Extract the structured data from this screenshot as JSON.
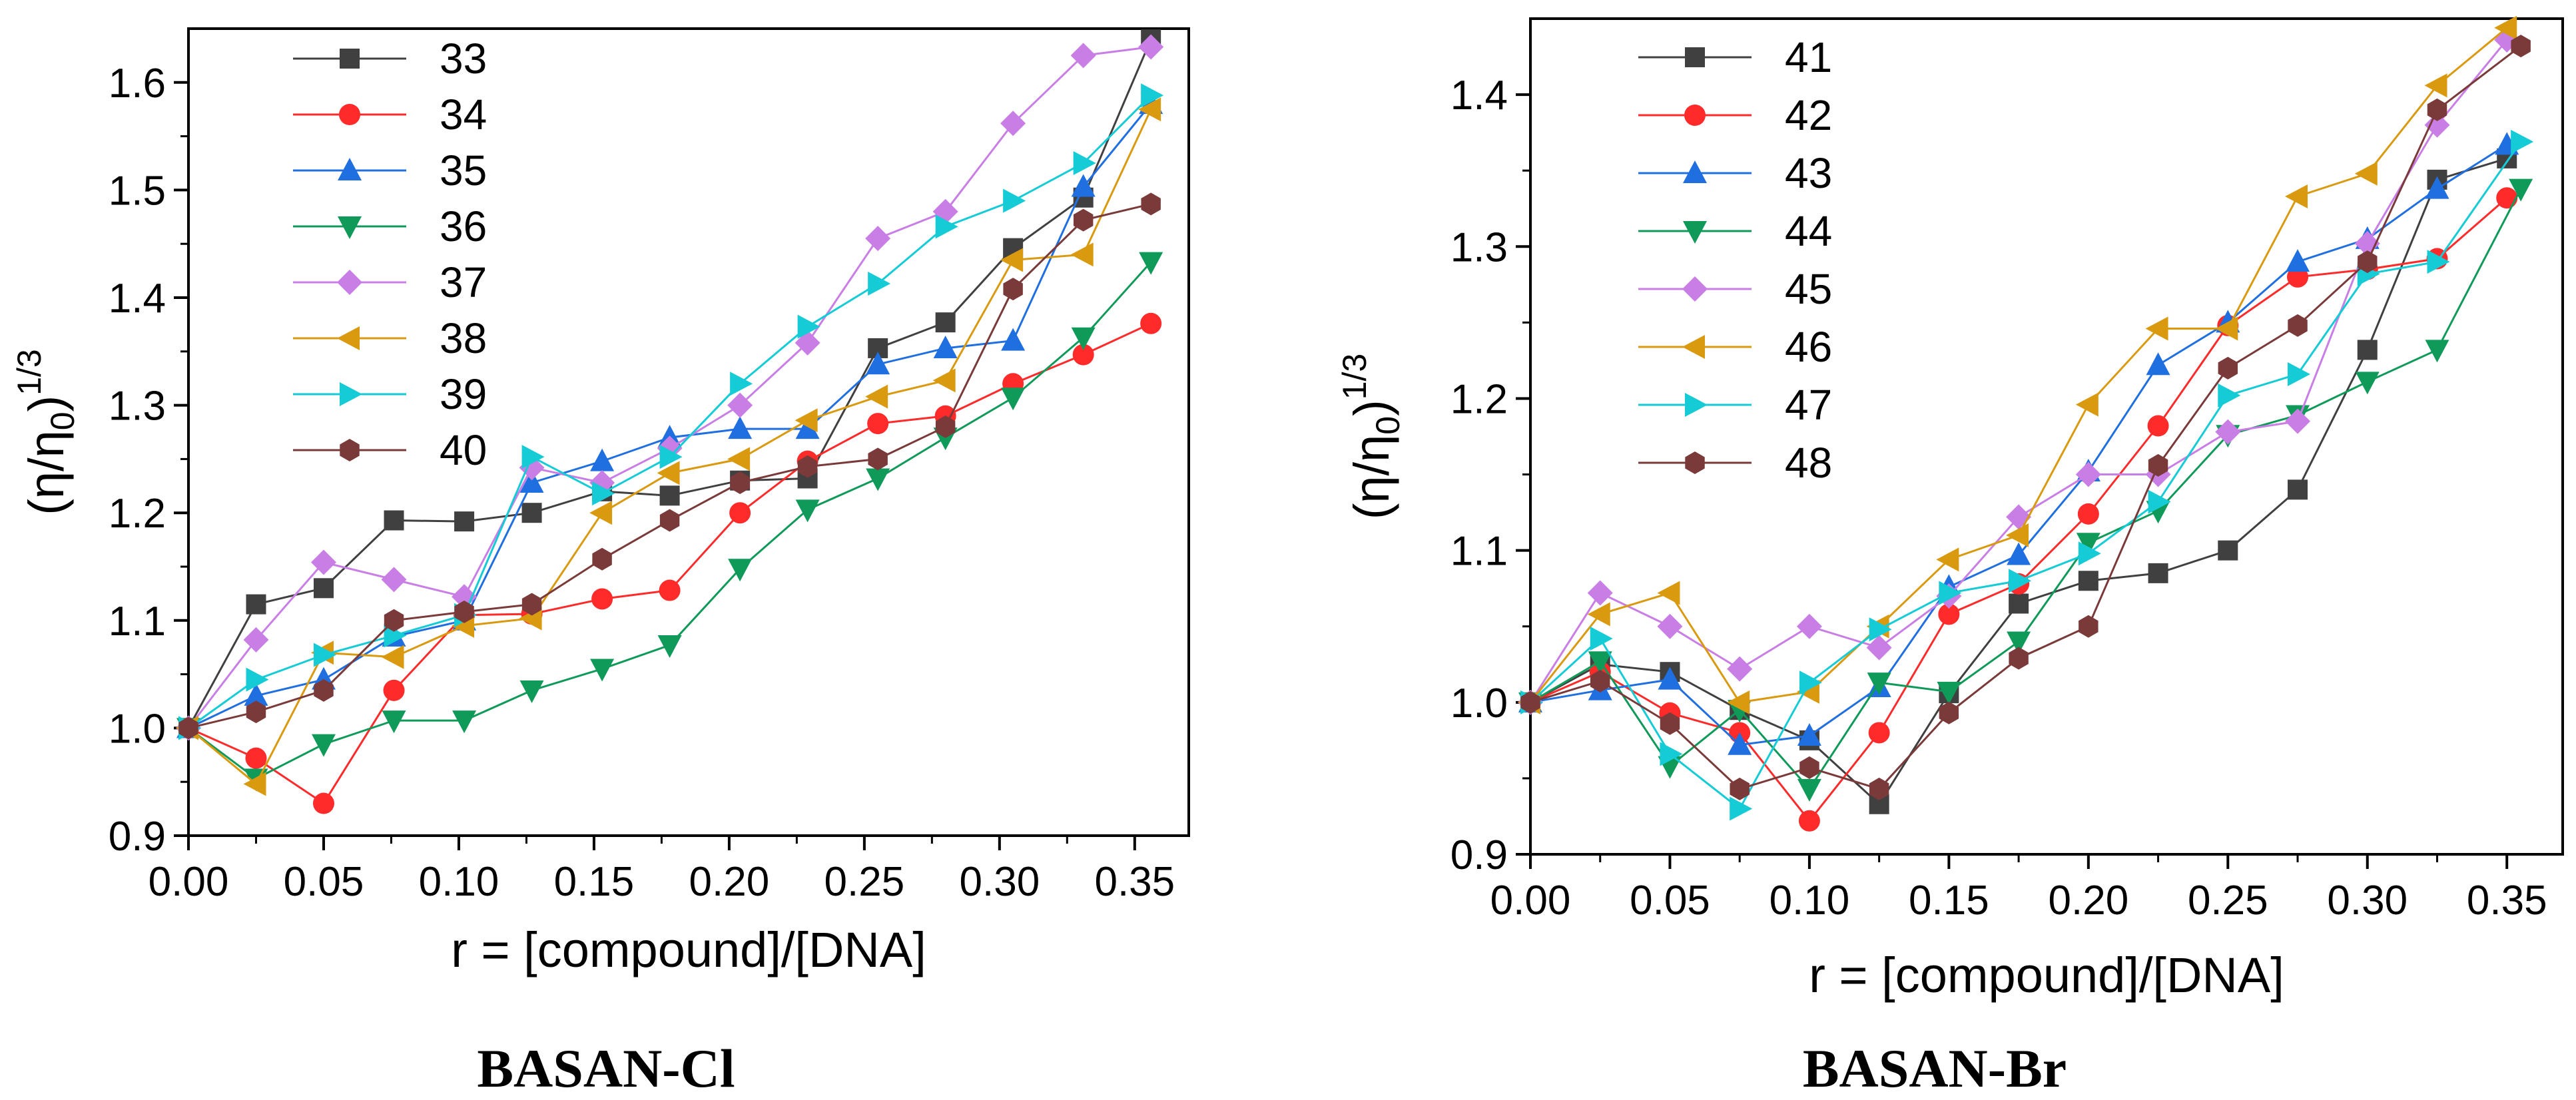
{
  "chart_data": [
    {
      "type": "line",
      "title": "BASAN-Cl",
      "xlabel": "r = [compound]/[DNA]",
      "ylabel_main": "(η/η",
      "ylabel_sub": "0",
      "ylabel_close": ")",
      "ylabel_sup": "1/3",
      "xlim": [
        0,
        0.37
      ],
      "ylim": [
        0.9,
        1.65
      ],
      "xticks": [
        0.0,
        0.05,
        0.1,
        0.15,
        0.2,
        0.25,
        0.3,
        0.35
      ],
      "xtick_labels": [
        "0.00",
        "0.05",
        "0.10",
        "0.15",
        "0.20",
        "0.25",
        "0.30",
        "0.35"
      ],
      "yticks": [
        0.9,
        1.0,
        1.1,
        1.2,
        1.3,
        1.4,
        1.5,
        1.6
      ],
      "ytick_labels": [
        "0.9",
        "1.0",
        "1.1",
        "1.2",
        "1.3",
        "1.4",
        "1.5",
        "1.6"
      ],
      "legend_position": "top-left",
      "series": [
        {
          "name": "33",
          "color": "#404040",
          "marker": "square",
          "x": [
            0,
            0.025,
            0.05,
            0.076,
            0.102,
            0.127,
            0.153,
            0.178,
            0.204,
            0.229,
            0.255,
            0.28,
            0.305,
            0.331,
            0.356
          ],
          "y": [
            1.0,
            1.115,
            1.13,
            1.193,
            1.192,
            1.2,
            1.22,
            1.216,
            1.23,
            1.232,
            1.353,
            1.377,
            1.446,
            1.493,
            1.64
          ]
        },
        {
          "name": "34",
          "color": "#ff2a2a",
          "marker": "circle",
          "x": [
            0,
            0.025,
            0.05,
            0.076,
            0.102,
            0.127,
            0.153,
            0.178,
            0.204,
            0.229,
            0.255,
            0.28,
            0.305,
            0.331,
            0.356
          ],
          "y": [
            1.0,
            0.972,
            0.93,
            1.035,
            1.105,
            1.106,
            1.12,
            1.128,
            1.2,
            1.248,
            1.283,
            1.29,
            1.32,
            1.347,
            1.376
          ]
        },
        {
          "name": "35",
          "color": "#1f6fe0",
          "marker": "triangle-up",
          "x": [
            0,
            0.025,
            0.05,
            0.076,
            0.102,
            0.127,
            0.153,
            0.178,
            0.204,
            0.229,
            0.255,
            0.28,
            0.305,
            0.331,
            0.356
          ],
          "y": [
            1.0,
            1.03,
            1.045,
            1.085,
            1.1,
            1.228,
            1.248,
            1.27,
            1.278,
            1.278,
            1.338,
            1.353,
            1.36,
            1.503,
            1.58
          ]
        },
        {
          "name": "36",
          "color": "#0f9a5a",
          "marker": "triangle-down",
          "x": [
            0,
            0.025,
            0.05,
            0.076,
            0.102,
            0.127,
            0.153,
            0.178,
            0.204,
            0.229,
            0.255,
            0.28,
            0.305,
            0.331,
            0.356
          ],
          "y": [
            1.0,
            0.953,
            0.985,
            1.007,
            1.007,
            1.035,
            1.055,
            1.077,
            1.148,
            1.203,
            1.232,
            1.27,
            1.307,
            1.363,
            1.433
          ]
        },
        {
          "name": "37",
          "color": "#c97ee6",
          "marker": "diamond",
          "x": [
            0,
            0.025,
            0.05,
            0.076,
            0.102,
            0.127,
            0.153,
            0.178,
            0.204,
            0.229,
            0.255,
            0.28,
            0.305,
            0.331,
            0.356
          ],
          "y": [
            1.0,
            1.082,
            1.154,
            1.138,
            1.122,
            1.242,
            1.228,
            1.26,
            1.3,
            1.358,
            1.455,
            1.48,
            1.562,
            1.625,
            1.633
          ]
        },
        {
          "name": "38",
          "color": "#d99a10",
          "marker": "triangle-left",
          "x": [
            0,
            0.025,
            0.05,
            0.076,
            0.102,
            0.127,
            0.153,
            0.178,
            0.204,
            0.229,
            0.255,
            0.28,
            0.305,
            0.331,
            0.356
          ],
          "y": [
            1.0,
            0.948,
            1.07,
            1.066,
            1.095,
            1.102,
            1.2,
            1.237,
            1.25,
            1.286,
            1.308,
            1.323,
            1.435,
            1.44,
            1.575
          ]
        },
        {
          "name": "39",
          "color": "#14cbd6",
          "marker": "triangle-right",
          "x": [
            0,
            0.025,
            0.05,
            0.076,
            0.102,
            0.127,
            0.153,
            0.178,
            0.204,
            0.229,
            0.255,
            0.28,
            0.305,
            0.331,
            0.356
          ],
          "y": [
            1.0,
            1.045,
            1.068,
            1.086,
            1.105,
            1.252,
            1.218,
            1.252,
            1.32,
            1.373,
            1.413,
            1.466,
            1.49,
            1.525,
            1.588
          ]
        },
        {
          "name": "40",
          "color": "#7b3a3a",
          "marker": "hexagon",
          "x": [
            0,
            0.025,
            0.05,
            0.076,
            0.102,
            0.127,
            0.153,
            0.178,
            0.204,
            0.229,
            0.255,
            0.28,
            0.305,
            0.331,
            0.356
          ],
          "y": [
            1.0,
            1.015,
            1.035,
            1.1,
            1.108,
            1.115,
            1.157,
            1.193,
            1.228,
            1.243,
            1.25,
            1.28,
            1.408,
            1.472,
            1.487
          ]
        }
      ]
    },
    {
      "type": "line",
      "title": "BASAN-Br",
      "xlabel": "r = [compound]/[DNA]",
      "ylabel_main": "(η/η",
      "ylabel_sub": "0",
      "ylabel_close": ")",
      "ylabel_sup": "1/3",
      "xlim": [
        0,
        0.37
      ],
      "ylim": [
        0.9,
        1.45
      ],
      "xticks": [
        0.0,
        0.05,
        0.1,
        0.15,
        0.2,
        0.25,
        0.3,
        0.35
      ],
      "xtick_labels": [
        "0.00",
        "0.05",
        "0.10",
        "0.15",
        "0.20",
        "0.25",
        "0.30",
        "0.35"
      ],
      "yticks": [
        0.9,
        1.0,
        1.1,
        1.2,
        1.3,
        1.4
      ],
      "ytick_labels": [
        "0.9",
        "1.0",
        "1.1",
        "1.2",
        "1.3",
        "1.4"
      ],
      "legend_position": "top-left",
      "series": [
        {
          "name": "41",
          "color": "#404040",
          "marker": "square",
          "x": [
            0,
            0.025,
            0.05,
            0.075,
            0.1,
            0.125,
            0.15,
            0.175,
            0.2,
            0.225,
            0.25,
            0.275,
            0.3,
            0.325,
            0.35
          ],
          "y": [
            1.0,
            1.025,
            1.02,
            0.995,
            0.975,
            0.933,
            1.006,
            1.065,
            1.08,
            1.085,
            1.1,
            1.14,
            1.232,
            1.344,
            1.358
          ]
        },
        {
          "name": "42",
          "color": "#ff2a2a",
          "marker": "circle",
          "x": [
            0,
            0.025,
            0.05,
            0.075,
            0.1,
            0.125,
            0.15,
            0.175,
            0.2,
            0.225,
            0.25,
            0.275,
            0.3,
            0.325,
            0.35
          ],
          "y": [
            1.0,
            1.02,
            0.993,
            0.98,
            0.922,
            0.98,
            1.058,
            1.078,
            1.124,
            1.182,
            1.248,
            1.28,
            1.285,
            1.292,
            1.332
          ]
        },
        {
          "name": "43",
          "color": "#1f6fe0",
          "marker": "triangle-up",
          "x": [
            0,
            0.025,
            0.05,
            0.075,
            0.1,
            0.125,
            0.15,
            0.175,
            0.2,
            0.225,
            0.25,
            0.275,
            0.3,
            0.325,
            0.35
          ],
          "y": [
            1.0,
            1.008,
            1.015,
            0.972,
            0.978,
            1.01,
            1.076,
            1.097,
            1.152,
            1.222,
            1.25,
            1.29,
            1.305,
            1.338,
            1.367
          ]
        },
        {
          "name": "44",
          "color": "#0f9a5a",
          "marker": "triangle-down",
          "x": [
            0,
            0.025,
            0.05,
            0.075,
            0.1,
            0.125,
            0.15,
            0.175,
            0.2,
            0.225,
            0.25,
            0.275,
            0.3,
            0.325,
            0.355
          ],
          "y": [
            1.0,
            1.027,
            0.958,
            0.995,
            0.943,
            1.013,
            1.007,
            1.04,
            1.105,
            1.126,
            1.176,
            1.189,
            1.211,
            1.232,
            1.338
          ]
        },
        {
          "name": "45",
          "color": "#c97ee6",
          "marker": "diamond",
          "x": [
            0,
            0.025,
            0.05,
            0.075,
            0.1,
            0.125,
            0.15,
            0.175,
            0.2,
            0.225,
            0.25,
            0.275,
            0.3,
            0.325,
            0.35
          ],
          "y": [
            1.0,
            1.072,
            1.05,
            1.022,
            1.05,
            1.036,
            1.07,
            1.122,
            1.15,
            1.15,
            1.178,
            1.185,
            1.302,
            1.38,
            1.436
          ]
        },
        {
          "name": "46",
          "color": "#d99a10",
          "marker": "triangle-left",
          "x": [
            0,
            0.025,
            0.05,
            0.075,
            0.1,
            0.125,
            0.15,
            0.175,
            0.2,
            0.225,
            0.25,
            0.275,
            0.3,
            0.325,
            0.35
          ],
          "y": [
            1.0,
            1.058,
            1.072,
            1.0,
            1.007,
            1.05,
            1.094,
            1.11,
            1.196,
            1.246,
            1.246,
            1.333,
            1.348,
            1.406,
            1.444
          ]
        },
        {
          "name": "47",
          "color": "#14cbd6",
          "marker": "triangle-right",
          "x": [
            0,
            0.025,
            0.05,
            0.075,
            0.1,
            0.125,
            0.15,
            0.175,
            0.2,
            0.225,
            0.25,
            0.275,
            0.3,
            0.325,
            0.355
          ],
          "y": [
            1.0,
            1.042,
            0.966,
            0.93,
            1.013,
            1.048,
            1.072,
            1.08,
            1.098,
            1.132,
            1.202,
            1.216,
            1.282,
            1.29,
            1.369
          ]
        },
        {
          "name": "48",
          "color": "#7b3a3a",
          "marker": "hexagon",
          "x": [
            0,
            0.025,
            0.05,
            0.075,
            0.1,
            0.125,
            0.15,
            0.175,
            0.2,
            0.225,
            0.25,
            0.275,
            0.3,
            0.325,
            0.355
          ],
          "y": [
            1.0,
            1.014,
            0.986,
            0.943,
            0.957,
            0.943,
            0.993,
            1.029,
            1.05,
            1.156,
            1.22,
            1.248,
            1.29,
            1.39,
            1.432
          ]
        }
      ]
    }
  ]
}
